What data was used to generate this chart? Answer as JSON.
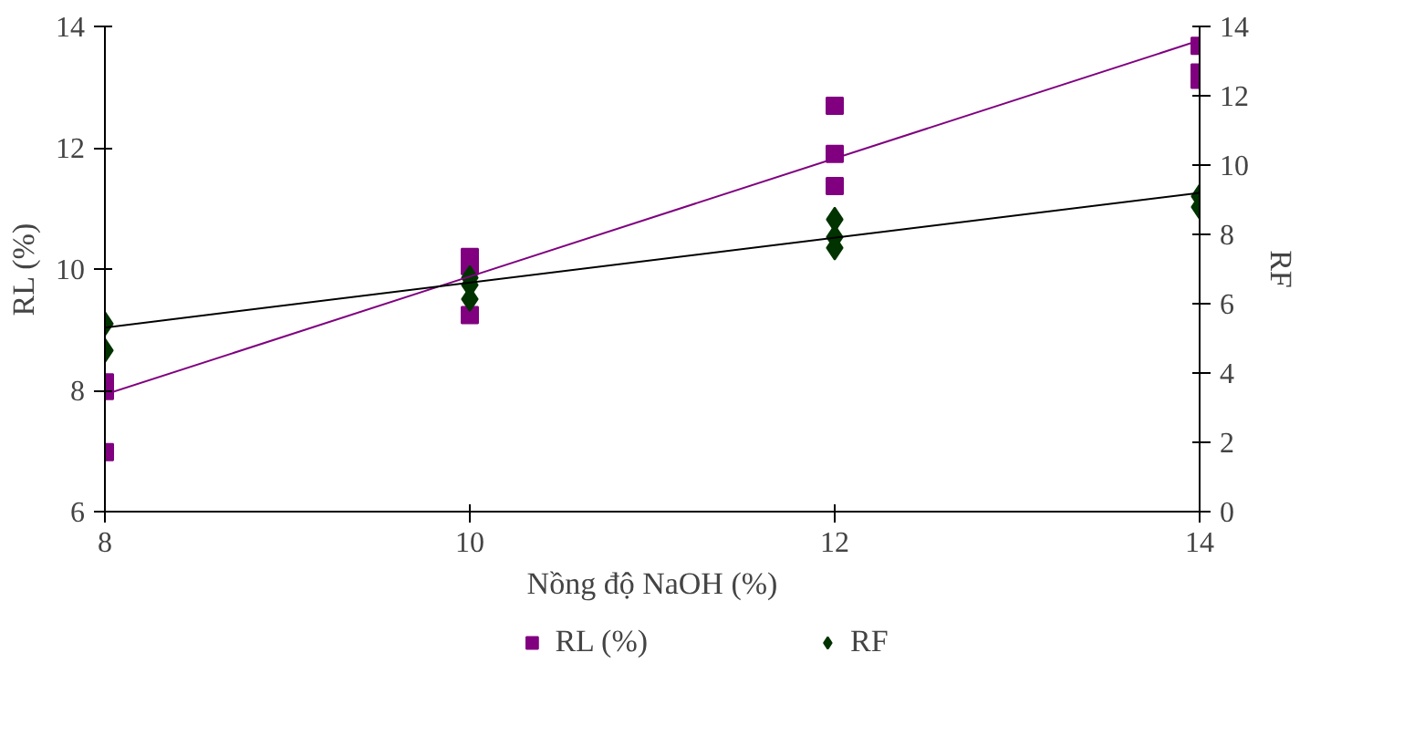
{
  "chart_data": {
    "type": "scatter",
    "xlabel": "Nồng độ NaOH (%)",
    "ylabel": "RL (%)",
    "y2label": "RF",
    "xlim": [
      8,
      14
    ],
    "xticks": [
      8,
      10,
      12,
      14
    ],
    "ylim": [
      6,
      14
    ],
    "yticks": [
      6,
      8,
      10,
      12,
      14
    ],
    "y2lim": [
      0,
      14
    ],
    "y2ticks": [
      0,
      2,
      4,
      6,
      8,
      10,
      12,
      14
    ],
    "grid": false,
    "legend": "bottom",
    "series": [
      {
        "name": "RL (%)",
        "marker": "square",
        "color": "#800080",
        "x": [
          8,
          8,
          8,
          10,
          10,
          10,
          12,
          12,
          12,
          14,
          14,
          14
        ],
        "values": [
          6.98,
          7.99,
          8.13,
          10.2,
          10.05,
          9.24,
          12.69,
          11.9,
          11.37,
          13.68,
          13.24,
          13.12
        ]
      },
      {
        "name": "RF",
        "marker": "diamond",
        "axis": "y2",
        "color": "#003300",
        "x": [
          8,
          8,
          10,
          10,
          10,
          12,
          12,
          12,
          14,
          14
        ],
        "values": [
          5.42,
          4.65,
          6.75,
          6.54,
          6.13,
          8.43,
          7.92,
          7.61,
          9.1,
          8.79
        ]
      },
      {
        "type": "line",
        "color": "#800080",
        "x": [
          8,
          14
        ],
        "values": [
          7.93,
          13.77
        ]
      },
      {
        "type": "line",
        "axis": "y2",
        "color": "#000000",
        "x": [
          8,
          14
        ],
        "values": [
          5.31,
          9.2
        ]
      }
    ]
  }
}
